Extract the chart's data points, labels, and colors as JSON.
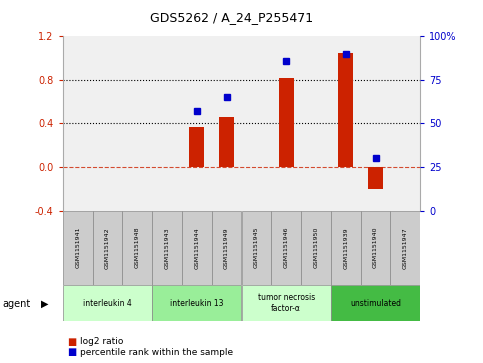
{
  "title": "GDS5262 / A_24_P255471",
  "samples": [
    "GSM1151941",
    "GSM1151942",
    "GSM1151948",
    "GSM1151943",
    "GSM1151944",
    "GSM1151949",
    "GSM1151945",
    "GSM1151946",
    "GSM1151950",
    "GSM1151939",
    "GSM1151940",
    "GSM1151947"
  ],
  "log2_ratio": [
    0.0,
    0.0,
    0.0,
    0.0,
    0.37,
    0.46,
    0.0,
    0.82,
    0.0,
    1.05,
    -0.2,
    0.0
  ],
  "percentile_rank": [
    null,
    null,
    null,
    null,
    0.57,
    0.65,
    null,
    0.86,
    null,
    0.9,
    0.3,
    null
  ],
  "agents": [
    {
      "label": "interleukin 4",
      "start": 0,
      "end": 2,
      "color": "#ccffcc"
    },
    {
      "label": "interleukin 13",
      "start": 3,
      "end": 5,
      "color": "#aaffaa"
    },
    {
      "label": "tumor necrosis\nfactor-α",
      "start": 6,
      "end": 8,
      "color": "#ccffcc"
    },
    {
      "label": "unstimulated",
      "start": 9,
      "end": 11,
      "color": "#44cc44"
    }
  ],
  "ylim_left": [
    -0.4,
    1.2
  ],
  "ylim_right": [
    0,
    100
  ],
  "yticks_left": [
    -0.4,
    0.0,
    0.4,
    0.8,
    1.2
  ],
  "yticks_right": [
    0,
    25,
    50,
    75,
    100
  ],
  "bar_color": "#cc2200",
  "dot_color": "#0000cc",
  "zero_line_color": "#cc2200",
  "bg_color": "#f0f0f0",
  "sample_box_color": "#cccccc",
  "legend_labels": [
    "log2 ratio",
    "percentile rank within the sample"
  ],
  "legend_colors": [
    "#cc2200",
    "#0000cc"
  ]
}
